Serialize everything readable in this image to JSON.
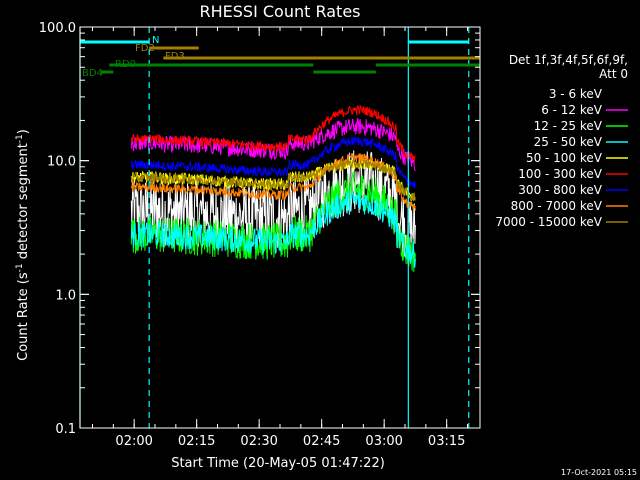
{
  "chart_data": {
    "type": "line",
    "title": "RHESSI Count Rates",
    "xlabel": "Start Time (20-May-05 01:47:22)",
    "ylabel_parts": {
      "pre": "Count Rate (s",
      "sup1": "-1",
      "mid": " detector segment",
      "sup2": "-1",
      "post": ")"
    },
    "yscale": "log",
    "ylim": [
      0.1,
      100.0
    ],
    "y_ticks": [
      {
        "value": 0.1,
        "label": "0.1"
      },
      {
        "value": 1.0,
        "label": "1.0"
      },
      {
        "value": 10.0,
        "label": "10.0"
      },
      {
        "value": 100.0,
        "label": "100.0"
      }
    ],
    "xlim_minutes_since_0147": [
      0,
      96
    ],
    "x_ticks": [
      {
        "value": 13,
        "label": "02:00"
      },
      {
        "value": 28,
        "label": "02:15"
      },
      {
        "value": 43,
        "label": "02:30"
      },
      {
        "value": 58,
        "label": "02:45"
      },
      {
        "value": 73,
        "label": "03:00"
      },
      {
        "value": 88,
        "label": "03:15"
      }
    ],
    "legend": {
      "placement": "right",
      "header": [
        "Det 1f,3f,4f,5f,6f,9f,",
        "Att 0"
      ]
    },
    "series": [
      {
        "name": "3 - 6 keV",
        "color": "#ffffff",
        "legend_color": "#000000",
        "baseline": 4.2,
        "peak": 7.0,
        "noise": 0.28
      },
      {
        "name": "6 - 12 keV",
        "color": "#ff00ff",
        "baseline": 13.5,
        "peak": 18.0,
        "noise": 0.07
      },
      {
        "name": "12 - 25 keV",
        "color": "#00ff00",
        "baseline": 2.8,
        "peak": 6.0,
        "noise": 0.16
      },
      {
        "name": "25 - 50 keV",
        "color": "#00ffff",
        "baseline": 2.8,
        "peak": 5.0,
        "noise": 0.11
      },
      {
        "name": "50 - 100 keV",
        "color": "#ffff00",
        "baseline": 7.5,
        "peak": 9.5,
        "noise": 0.05
      },
      {
        "name": "100 - 300 keV",
        "color": "#ff0000",
        "baseline": 14.5,
        "peak": 24.0,
        "noise": 0.04
      },
      {
        "name": "300 - 800 keV",
        "color": "#0000ff",
        "baseline": 9.3,
        "peak": 14.0,
        "noise": 0.04
      },
      {
        "name": "800 - 7000 keV",
        "color": "#ff8000",
        "baseline": 6.3,
        "peak": 10.5,
        "noise": 0.04
      },
      {
        "name": "7000 - 15000 keV",
        "color": "#a08000",
        "baseline": 7.5,
        "peak": 9.5,
        "noise": 0.04
      }
    ],
    "data_interval_minutes": [
      12.3,
      80.5
    ],
    "flare_peak_minutes": 66,
    "vertical_lines": [
      {
        "minute": 0,
        "style": "solid",
        "color": "#00ffff"
      },
      {
        "minute": 16.6,
        "style": "dashed",
        "color": "#00ffff"
      },
      {
        "minute": 78.8,
        "style": "solid",
        "color": "#00ffff"
      },
      {
        "minute": 93.3,
        "style": "dashed",
        "color": "#00ffff"
      }
    ],
    "flag_bars": [
      {
        "label": "N",
        "color": "#00ffff",
        "segments": [
          [
            0,
            16.6
          ],
          [
            78.8,
            93.3
          ]
        ]
      },
      {
        "label": "FD2",
        "color": "#a08000",
        "segments": [
          [
            16.6,
            28.5
          ]
        ]
      },
      {
        "label": "FD3",
        "color": "#a08000",
        "segments": [
          [
            20,
            96
          ]
        ]
      },
      {
        "label": "RD0",
        "color": "#008000",
        "segments": [
          [
            7,
            56
          ],
          [
            71,
            96
          ]
        ]
      },
      {
        "label": "BD4",
        "color": "#008000",
        "segments": [
          [
            5,
            8
          ],
          [
            56,
            71
          ]
        ]
      }
    ]
  },
  "footer_timestamp": "17-Oct-2021 05:15"
}
